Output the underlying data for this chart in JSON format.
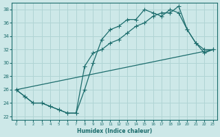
{
  "xlabel": "Humidex (Indice chaleur)",
  "bg_color": "#cde8e8",
  "grid_color": "#b0d4d4",
  "line_color": "#1a6b6b",
  "xlim": [
    -0.5,
    23.5
  ],
  "ylim": [
    21.5,
    39.0
  ],
  "xticks": [
    0,
    1,
    2,
    3,
    4,
    5,
    6,
    7,
    8,
    9,
    10,
    11,
    12,
    13,
    14,
    15,
    16,
    17,
    18,
    19,
    20,
    21,
    22,
    23
  ],
  "yticks": [
    22,
    24,
    26,
    28,
    30,
    32,
    34,
    36,
    38
  ],
  "curve1_x": [
    0,
    1,
    2,
    3,
    4,
    5,
    6,
    7,
    8,
    9,
    10,
    11,
    12,
    13,
    14,
    15,
    16,
    17,
    18,
    19,
    20,
    21,
    22,
    23
  ],
  "curve1_y": [
    26.0,
    25.0,
    24.0,
    24.0,
    23.5,
    23.0,
    22.5,
    22.5,
    26.0,
    30.0,
    33.5,
    35.0,
    35.5,
    36.5,
    36.5,
    38.0,
    37.5,
    37.0,
    38.0,
    37.5,
    35.0,
    33.0,
    32.0,
    32.0
  ],
  "curve2_x": [
    0,
    1,
    2,
    3,
    4,
    5,
    6,
    7,
    8,
    9,
    10,
    11,
    12,
    13,
    14,
    15,
    16,
    17,
    18,
    19,
    20,
    21,
    22,
    23
  ],
  "curve2_y": [
    26.0,
    25.0,
    24.0,
    24.0,
    23.5,
    23.0,
    22.5,
    22.5,
    29.5,
    31.5,
    32.0,
    33.0,
    33.5,
    34.5,
    35.5,
    36.0,
    37.0,
    37.5,
    37.5,
    38.5,
    35.0,
    33.0,
    31.5,
    32.0
  ],
  "line_x": [
    0,
    23
  ],
  "line_y": [
    26.0,
    32.0
  ]
}
